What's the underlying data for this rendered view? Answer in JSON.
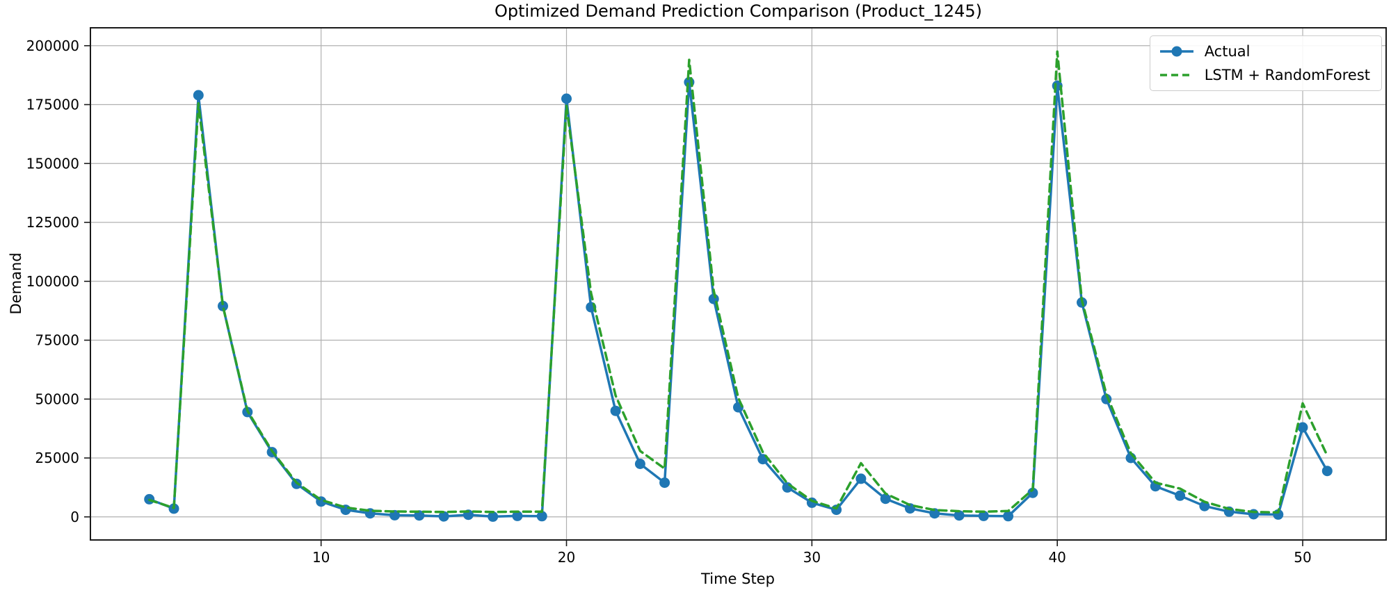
{
  "figure": {
    "background_color": "#ffffff",
    "grid_color": "#b0b0b0",
    "spine_color": "#1a1a1a",
    "text_color": "#000000"
  },
  "chart_data": {
    "type": "line",
    "title": "Optimized Demand Prediction Comparison (Product_1245)",
    "xlabel": "Time Step",
    "ylabel": "Demand",
    "grid": true,
    "legend_position": "upper right",
    "xlim": [
      0.6,
      53.4
    ],
    "ylim": [
      -9800,
      207600
    ],
    "xticks": [
      10,
      20,
      30,
      40,
      50
    ],
    "yticks": [
      0,
      25000,
      50000,
      75000,
      100000,
      125000,
      150000,
      175000,
      200000
    ],
    "x": [
      3,
      4,
      5,
      6,
      7,
      8,
      9,
      10,
      11,
      12,
      13,
      14,
      15,
      16,
      17,
      18,
      19,
      20,
      21,
      22,
      23,
      24,
      25,
      26,
      27,
      28,
      29,
      30,
      31,
      32,
      33,
      34,
      35,
      36,
      37,
      38,
      39,
      40,
      41,
      42,
      43,
      44,
      45,
      46,
      47,
      48,
      49,
      50,
      51
    ],
    "series": [
      {
        "name": "Actual",
        "color": "#1f77b4",
        "style": "solid",
        "marker": "circle",
        "values": [
          7500,
          3500,
          179000,
          89500,
          44500,
          27500,
          14000,
          6500,
          3000,
          1500,
          700,
          600,
          200,
          900,
          100,
          400,
          300,
          177500,
          89000,
          45000,
          22500,
          14500,
          184500,
          92500,
          46500,
          24500,
          12500,
          6000,
          3000,
          16200,
          7700,
          3600,
          1500,
          600,
          400,
          300,
          10200,
          183000,
          91000,
          50000,
          25000,
          13000,
          9000,
          4600,
          2200,
          1100,
          1000,
          38000,
          19500
        ]
      },
      {
        "name": "LSTM + RandomForest",
        "color": "#2ca02c",
        "style": "dashed",
        "marker": "none",
        "values": [
          7200,
          3800,
          175500,
          89500,
          45000,
          28000,
          14500,
          7200,
          4000,
          2600,
          2300,
          2200,
          2100,
          2300,
          2100,
          2200,
          2200,
          174500,
          95000,
          51500,
          28000,
          20500,
          194000,
          96000,
          50500,
          27500,
          14200,
          6800,
          3600,
          22800,
          9900,
          5000,
          2900,
          2400,
          2200,
          2500,
          11600,
          197500,
          92000,
          52000,
          27000,
          14500,
          12000,
          6400,
          3400,
          2100,
          1900,
          48200,
          26000
        ]
      }
    ]
  }
}
